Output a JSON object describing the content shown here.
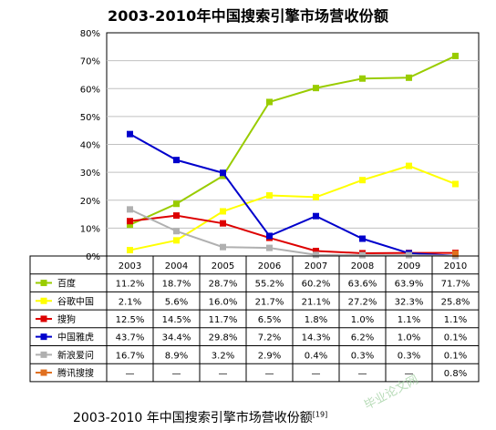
{
  "chart_data": {
    "type": "line",
    "title": "2003-2010年中国搜索引擎市场营收份额",
    "categories": [
      "2003",
      "2004",
      "2005",
      "2006",
      "2007",
      "2008",
      "2009",
      "2010"
    ],
    "y_ticks": [
      "0%",
      "10%",
      "20%",
      "30%",
      "40%",
      "50%",
      "60%",
      "70%",
      "80%"
    ],
    "ylim": [
      0,
      80
    ],
    "grid": true,
    "legend_placement": "table-below",
    "series": [
      {
        "name": "百度",
        "color": "#99cc00",
        "values": [
          11.2,
          18.7,
          28.7,
          55.2,
          60.2,
          63.6,
          63.9,
          71.7
        ],
        "labels": [
          "11.2%",
          "18.7%",
          "28.7%",
          "55.2%",
          "60.2%",
          "63.6%",
          "63.9%",
          "71.7%"
        ]
      },
      {
        "name": "谷歌中国",
        "color": "#ffff00",
        "values": [
          2.1,
          5.6,
          16.0,
          21.7,
          21.1,
          27.2,
          32.3,
          25.8
        ],
        "labels": [
          "2.1%",
          "5.6%",
          "16.0%",
          "21.7%",
          "21.1%",
          "27.2%",
          "32.3%",
          "25.8%"
        ]
      },
      {
        "name": "搜狗",
        "color": "#dd0000",
        "values": [
          12.5,
          14.5,
          11.7,
          6.5,
          1.8,
          1.0,
          1.1,
          1.1
        ],
        "labels": [
          "12.5%",
          "14.5%",
          "11.7%",
          "6.5%",
          "1.8%",
          "1.0%",
          "1.1%",
          "1.1%"
        ]
      },
      {
        "name": "中国雅虎",
        "color": "#0000cc",
        "values": [
          43.7,
          34.4,
          29.8,
          7.2,
          14.3,
          6.2,
          1.0,
          0.1
        ],
        "labels": [
          "43.7%",
          "34.4%",
          "29.8%",
          "7.2%",
          "14.3%",
          "6.2%",
          "1.0%",
          "0.1%"
        ]
      },
      {
        "name": "新浪爱问",
        "color": "#b0b0b0",
        "values": [
          16.7,
          8.9,
          3.2,
          2.9,
          0.4,
          0.3,
          0.3,
          0.1
        ],
        "labels": [
          "16.7%",
          "8.9%",
          "3.2%",
          "2.9%",
          "0.4%",
          "0.3%",
          "0.3%",
          "0.1%"
        ]
      },
      {
        "name": "腾讯搜搜",
        "color": "#e07020",
        "values": [
          null,
          null,
          null,
          null,
          null,
          null,
          null,
          0.8
        ],
        "labels": [
          "—",
          "—",
          "—",
          "—",
          "—",
          "—",
          "—",
          "0.8%"
        ]
      }
    ]
  },
  "caption": "2003-2010 年中国搜索引擎市场营收份额",
  "caption_ref": "[19]",
  "watermark": "毕业论文网"
}
